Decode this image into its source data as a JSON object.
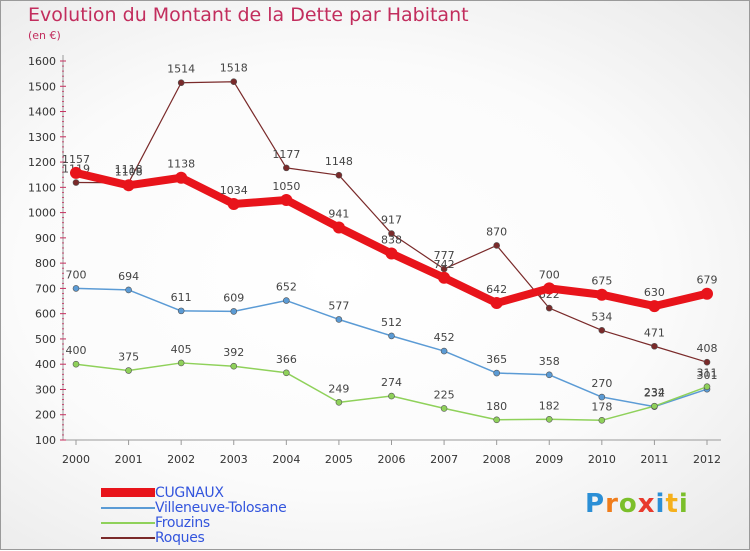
{
  "title": "Evolution du Montant de la Dette par Habitant",
  "subtitle": "(en €)",
  "logo": {
    "text": "Proxiti",
    "letters": [
      {
        "ch": "P",
        "color": "#2b8fd6"
      },
      {
        "ch": "r",
        "color": "#f07d1b"
      },
      {
        "ch": "o",
        "color": "#7bbf2a"
      },
      {
        "ch": "x",
        "color": "#e83a2d"
      },
      {
        "ch": "i",
        "color": "#2b8fd6"
      },
      {
        "ch": "t",
        "color": "#f5b01b"
      },
      {
        "ch": "i",
        "color": "#7bbf2a"
      }
    ]
  },
  "chart_data": {
    "type": "line",
    "title": "Evolution du Montant de la Dette par Habitant",
    "ylabel": "(en €)",
    "x": [
      "2000",
      "2001",
      "2002",
      "2003",
      "2004",
      "2005",
      "2006",
      "2007",
      "2008",
      "2009",
      "2010",
      "2011",
      "2012"
    ],
    "ylim": [
      100,
      1600
    ],
    "yticks": [
      100,
      200,
      300,
      400,
      500,
      600,
      700,
      800,
      900,
      1000,
      1100,
      1200,
      1300,
      1400,
      1500,
      1600
    ],
    "grid": false,
    "legend": "bottom-left",
    "series": [
      {
        "name": "CUGNAUX",
        "color": "#e8141b",
        "width": 8,
        "values": [
          1157,
          1108,
          1138,
          1034,
          1050,
          941,
          838,
          742,
          642,
          700,
          675,
          630,
          679
        ]
      },
      {
        "name": "Villeneuve-Tolosane",
        "color": "#5b9bd5",
        "width": 1.5,
        "values": [
          700,
          694,
          611,
          609,
          652,
          577,
          512,
          452,
          365,
          358,
          270,
          232,
          301
        ]
      },
      {
        "name": "Frouzins",
        "color": "#8fd15a",
        "width": 1.5,
        "values": [
          400,
          375,
          405,
          392,
          366,
          249,
          274,
          225,
          180,
          182,
          178,
          234,
          311
        ]
      },
      {
        "name": "Roques",
        "color": "#7a2a2a",
        "width": 1.2,
        "values": [
          1119,
          1118,
          1514,
          1518,
          1177,
          1148,
          917,
          777,
          870,
          622,
          534,
          471,
          408
        ]
      }
    ]
  }
}
